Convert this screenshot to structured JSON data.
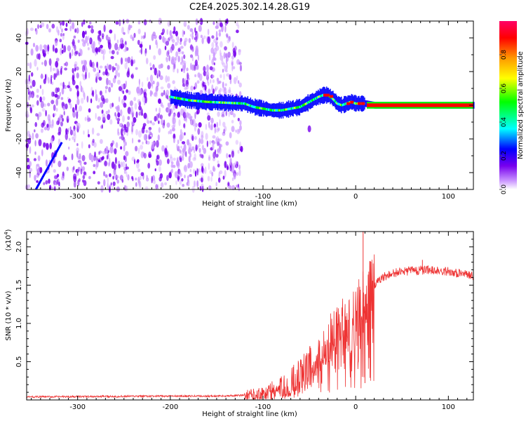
{
  "title": "C2E4.2025.302.14.28.G19",
  "chart_data": [
    {
      "type": "heatmap",
      "name": "spectrogram",
      "xlabel": "Height of straight line (km)",
      "ylabel": "Frequency (Hz)",
      "xlim": [
        -355,
        127
      ],
      "ylim": [
        -50,
        50
      ],
      "xticks": [
        -300,
        -200,
        -100,
        0,
        100
      ],
      "xtick_labels": [
        "-300",
        "-200",
        "-100",
        "0",
        "100"
      ],
      "yticks": [
        -40,
        -20,
        0,
        20,
        40
      ],
      "ytick_labels": [
        "-40",
        "-20",
        "0",
        "20",
        "40"
      ],
      "colorbar": {
        "label": "Normalized spectral amplitude",
        "range": [
          0,
          1
        ],
        "ticks": [
          0.0,
          0.2,
          0.4,
          0.6,
          0.8
        ],
        "tick_labels": [
          "0.0",
          "0.2",
          "0.4",
          "0.6",
          "0.8"
        ],
        "colors": [
          "#ffffff",
          "#cc99ff",
          "#7700ee",
          "#0000ff",
          "#00ffff",
          "#00ff00",
          "#ffff00",
          "#ff9900",
          "#ff0000",
          "#ff0066"
        ]
      },
      "tracked_signal": {
        "x": [
          -200,
          -180,
          -160,
          -140,
          -120,
          -110,
          -100,
          -90,
          -80,
          -70,
          -60,
          -50,
          -40,
          -35,
          -30,
          -25,
          -20,
          -15,
          -10,
          -5,
          0,
          10,
          20,
          40,
          60,
          80,
          100,
          127
        ],
        "y": [
          5,
          3,
          2,
          1.5,
          1,
          -1,
          -2,
          -3,
          -3,
          -2,
          -1,
          2,
          5,
          6,
          6,
          4,
          1,
          0,
          1,
          2,
          1,
          1,
          0,
          0,
          0,
          0,
          0,
          0
        ]
      }
    },
    {
      "type": "line",
      "name": "snr",
      "xlabel": "Height of straight line (km)",
      "ylabel": "SNR (10 * v/v)",
      "y_multiplier": "(x10",
      "y_multiplier_exp": "4",
      "y_multiplier_close": ")",
      "xlim": [
        -355,
        127
      ],
      "ylim": [
        0,
        2.2
      ],
      "xticks": [
        -300,
        -200,
        -100,
        0,
        100
      ],
      "xtick_labels": [
        "-300",
        "-200",
        "-100",
        "0",
        "100"
      ],
      "yticks": [
        0.5,
        1.0,
        1.5,
        2.0
      ],
      "ytick_labels": [
        "0.5",
        "1.0",
        "1.5",
        "2.0"
      ],
      "line_color": "#ee3333",
      "envelope": {
        "x": [
          -355,
          -200,
          -150,
          -120,
          -100,
          -80,
          -60,
          -40,
          -20,
          -10,
          0,
          5,
          10,
          20,
          30,
          40,
          60,
          80,
          100,
          127
        ],
        "y": [
          0.04,
          0.05,
          0.05,
          0.06,
          0.08,
          0.14,
          0.32,
          0.62,
          0.92,
          1.02,
          1.12,
          1.22,
          1.38,
          1.5,
          1.6,
          1.66,
          1.69,
          1.7,
          1.68,
          1.62
        ]
      },
      "spikes": [
        {
          "x": 8,
          "y": 2.2
        },
        {
          "x": 10,
          "y": 0.22
        },
        {
          "x": 72,
          "y": 1.83
        }
      ]
    }
  ]
}
